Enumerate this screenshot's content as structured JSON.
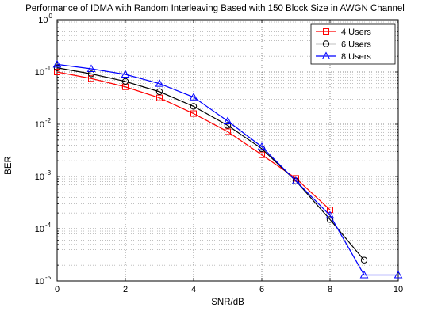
{
  "chart_data": {
    "type": "line",
    "title": "Performance of IDMA with Random Interleaving Based with 150 Block Size in AWGN Channel",
    "xlabel": "SNR/dB",
    "ylabel": "BER",
    "xlim": [
      0,
      10
    ],
    "ylim": [
      1e-05,
      1
    ],
    "yscale": "log",
    "xticks": [
      "0",
      "2",
      "4",
      "6",
      "8",
      "10"
    ],
    "yticks": [
      {
        "base": "10",
        "exp": "0"
      },
      {
        "base": "10",
        "exp": "-1"
      },
      {
        "base": "10",
        "exp": "-2"
      },
      {
        "base": "10",
        "exp": "-3"
      },
      {
        "base": "10",
        "exp": "-4"
      },
      {
        "base": "10",
        "exp": "-5"
      }
    ],
    "grid": true,
    "legend_position": "top-right",
    "series": [
      {
        "name": "4 Users",
        "color": "#ff0000",
        "marker": "square",
        "x": [
          0,
          1,
          2,
          3,
          4,
          5,
          6,
          7,
          8
        ],
        "y": [
          0.1,
          0.075,
          0.052,
          0.032,
          0.016,
          0.0072,
          0.0026,
          0.00092,
          0.00023
        ]
      },
      {
        "name": "6 Users",
        "color": "#000000",
        "marker": "circle",
        "x": [
          0,
          1,
          2,
          3,
          4,
          5,
          6,
          7,
          8,
          9
        ],
        "y": [
          0.12,
          0.092,
          0.066,
          0.042,
          0.022,
          0.0095,
          0.0034,
          0.00082,
          0.00015,
          2.5e-05
        ]
      },
      {
        "name": "8 Users",
        "color": "#0000ff",
        "marker": "triangle",
        "x": [
          0,
          1,
          2,
          3,
          4,
          5,
          6,
          7,
          8,
          9,
          10
        ],
        "y": [
          0.14,
          0.115,
          0.09,
          0.06,
          0.033,
          0.0115,
          0.0037,
          0.00082,
          0.00018,
          1.3e-05,
          1.3e-05
        ]
      }
    ]
  }
}
